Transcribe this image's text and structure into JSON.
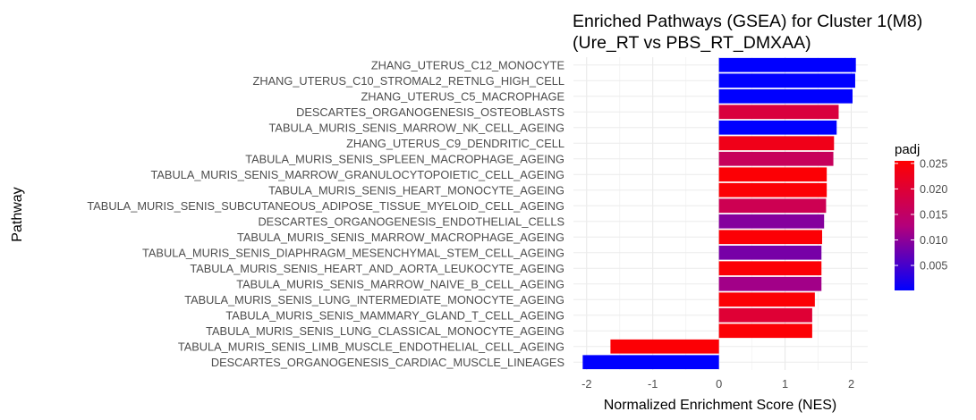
{
  "chart_data": {
    "type": "bar",
    "orientation": "horizontal",
    "title": [
      "Enriched Pathways (GSEA) for Cluster 1(M8)",
      "(Ure_RT vs PBS_RT_DMXAA)"
    ],
    "xlabel": "Normalized Enrichment Score (NES)",
    "ylabel": "Pathway",
    "xlim": [
      -2.2,
      2.25
    ],
    "xticks": [
      -2,
      -1,
      0,
      1,
      2
    ],
    "grid": true,
    "legend": {
      "title": "padj",
      "position": "right",
      "min": 0.0001,
      "max": 0.0255,
      "ticks": [
        0.005,
        0.01,
        0.015,
        0.02,
        0.025
      ],
      "tick_labels": [
        "0.005",
        "0.010",
        "0.015",
        "0.020",
        "0.025"
      ],
      "low_color": "#0000ff",
      "high_color": "#ff0000"
    },
    "categories": [
      "ZHANG_UTERUS_C12_MONOCYTE",
      "ZHANG_UTERUS_C10_STROMAL2_RETNLG_HIGH_CELL",
      "ZHANG_UTERUS_C5_MACROPHAGE",
      "DESCARTES_ORGANOGENESIS_OSTEOBLASTS",
      "TABULA_MURIS_SENIS_MARROW_NK_CELL_AGEING",
      "ZHANG_UTERUS_C9_DENDRITIC_CELL",
      "TABULA_MURIS_SENIS_SPLEEN_MACROPHAGE_AGEING",
      "TABULA_MURIS_SENIS_MARROW_GRANULOCYTOPOIETIC_CELL_AGEING",
      "TABULA_MURIS_SENIS_HEART_MONOCYTE_AGEING",
      "TABULA_MURIS_SENIS_SUBCUTANEOUS_ADIPOSE_TISSUE_MYELOID_CELL_AGEING",
      "DESCARTES_ORGANOGENESIS_ENDOTHELIAL_CELLS",
      "TABULA_MURIS_SENIS_MARROW_MACROPHAGE_AGEING",
      "TABULA_MURIS_SENIS_DIAPHRAGM_MESENCHYMAL_STEM_CELL_AGEING",
      "TABULA_MURIS_SENIS_HEART_AND_AORTA_LEUKOCYTE_AGEING",
      "TABULA_MURIS_SENIS_MARROW_NAIVE_B_CELL_AGEING",
      "TABULA_MURIS_SENIS_LUNG_INTERMEDIATE_MONOCYTE_AGEING",
      "TABULA_MURIS_SENIS_MAMMARY_GLAND_T_CELL_AGEING",
      "TABULA_MURIS_SENIS_LUNG_CLASSICAL_MONOCYTE_AGEING",
      "TABULA_MURIS_SENIS_LIMB_MUSCLE_ENDOTHELIAL_CELL_AGEING",
      "DESCARTES_ORGANOGENESIS_CARDIAC_MUSCLE_LINEAGES"
    ],
    "values": [
      2.07,
      2.06,
      2.02,
      1.81,
      1.78,
      1.74,
      1.73,
      1.63,
      1.63,
      1.62,
      1.59,
      1.56,
      1.55,
      1.55,
      1.55,
      1.45,
      1.41,
      1.41,
      -1.64,
      -2.06
    ],
    "padj": [
      0.0001,
      0.0001,
      0.0001,
      0.019,
      0.0001,
      0.023,
      0.016,
      0.025,
      0.025,
      0.017,
      0.0095,
      0.025,
      0.0085,
      0.025,
      0.0115,
      0.025,
      0.02,
      0.025,
      0.025,
      0.0001
    ]
  }
}
